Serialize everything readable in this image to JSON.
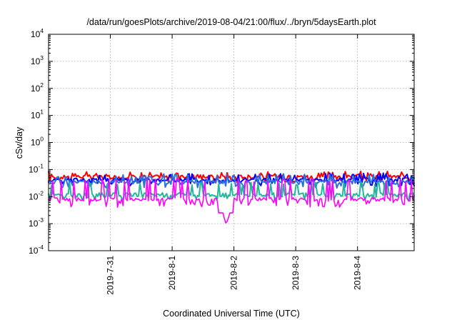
{
  "chart_data": {
    "type": "line",
    "title": "/data/run/goesPlots/archive/2019-08-04/21:00/flux/../bryn/5daysEarth.plot",
    "xlabel": "Coordinated Universal Time (UTC)",
    "ylabel": "cSv/day",
    "y_scale": "log",
    "ylim": [
      0.0001,
      10000
    ],
    "y_ticks": [
      {
        "base": "10",
        "exp": "4"
      },
      {
        "base": "10",
        "exp": "3"
      },
      {
        "base": "10",
        "exp": "2"
      },
      {
        "base": "10",
        "exp": "1"
      },
      {
        "base": "10",
        "exp": "0"
      },
      {
        "base": "10",
        "exp": "-1"
      },
      {
        "base": "10",
        "exp": "-2"
      },
      {
        "base": "10",
        "exp": "-3"
      },
      {
        "base": "10",
        "exp": "-4"
      }
    ],
    "xlim": [
      "2019-07-30T00:00",
      "2019-08-04T22:00"
    ],
    "x_ticks": [
      "2019-7-31",
      "2019-8-1",
      "2019-8-2",
      "2019-8-3",
      "2019-8-4"
    ],
    "x_tick_dates": [
      "2019-07-31",
      "2019-08-01",
      "2019-08-02",
      "2019-08-03",
      "2019-08-04"
    ],
    "grid": true,
    "series": [
      {
        "color": "#ff0000",
        "baseline": 0.055,
        "peak": 0.075,
        "trough": 0.04
      },
      {
        "color": "#0000ff",
        "baseline": 0.042,
        "peak": 0.065,
        "trough": 0.03
      },
      {
        "color": "#2a6fe0",
        "baseline": 0.035,
        "peak": 0.06,
        "trough": 0.025
      },
      {
        "color": "#1fb89a",
        "baseline": 0.012,
        "peak": 0.03,
        "trough": 0.009
      },
      {
        "color": "#ff00ff",
        "baseline": 0.008,
        "peak": 0.04,
        "trough": 0.005
      }
    ],
    "minimum_dip": {
      "date": "2019-08-01T21:00",
      "value": 0.0009
    }
  }
}
